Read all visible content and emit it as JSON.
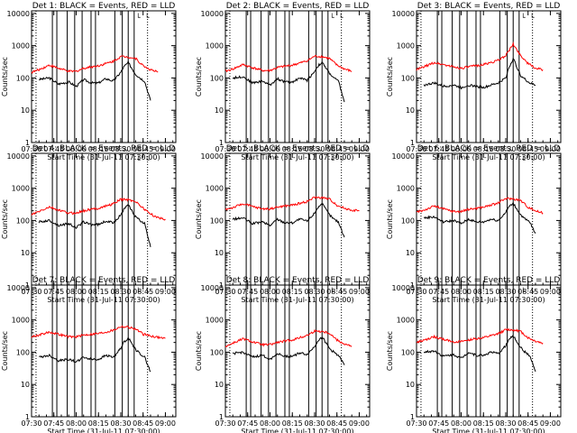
{
  "chart_data": {
    "type": "line",
    "x_axis": {
      "label": "Start Time (31-Jul-11 07:30:00)",
      "ticks": [
        "07:30",
        "07:45",
        "08:00",
        "08:15",
        "08:30",
        "08:45",
        "09:00"
      ],
      "range": [
        "07:30",
        "09:07"
      ]
    },
    "y_axis": {
      "label": "Counts/sec",
      "scale": "log",
      "range": [
        1,
        12000
      ],
      "ticks": [
        "1",
        "10",
        "100",
        "1000",
        "10000"
      ]
    },
    "grid": false,
    "colors": {
      "events": "#000000",
      "lld": "#ff0000"
    },
    "panels": [
      {
        "title": "Det 1: BLACK = Events, RED = LLD",
        "series": [
          {
            "color": "black",
            "times": [
              "07:35",
              "07:42",
              "07:48",
              "07:55",
              "08:00",
              "08:05",
              "08:10",
              "08:15",
              "08:20",
              "08:25",
              "08:30",
              "08:32",
              "08:35",
              "08:40",
              "08:43",
              "08:46",
              "08:50"
            ],
            "values": [
              90,
              100,
              65,
              75,
              55,
              90,
              70,
              70,
              95,
              80,
              150,
              220,
              300,
              130,
              100,
              80,
              20
            ]
          },
          {
            "color": "red",
            "times": [
              "07:30",
              "07:35",
              "07:42",
              "07:48",
              "07:55",
              "08:00",
              "08:05",
              "08:10",
              "08:15",
              "08:20",
              "08:25",
              "08:30",
              "08:35",
              "08:40",
              "08:45",
              "08:50",
              "08:55"
            ],
            "values": [
              150,
              180,
              250,
              200,
              160,
              160,
              200,
              220,
              240,
              280,
              330,
              460,
              450,
              400,
              240,
              180,
              150
            ]
          }
        ]
      },
      {
        "title": "Det 2: BLACK = Events, RED = LLD",
        "series": [
          {
            "color": "black",
            "times": [
              "07:35",
              "07:42",
              "07:48",
              "07:55",
              "08:00",
              "08:05",
              "08:10",
              "08:15",
              "08:20",
              "08:25",
              "08:30",
              "08:32",
              "08:35",
              "08:40",
              "08:43",
              "08:46",
              "08:50"
            ],
            "values": [
              100,
              110,
              70,
              80,
              60,
              95,
              75,
              75,
              100,
              85,
              160,
              230,
              300,
              140,
              100,
              80,
              18
            ]
          },
          {
            "color": "red",
            "times": [
              "07:30",
              "07:35",
              "07:42",
              "07:48",
              "07:55",
              "08:00",
              "08:05",
              "08:10",
              "08:15",
              "08:20",
              "08:25",
              "08:30",
              "08:35",
              "08:40",
              "08:45",
              "08:50",
              "08:55"
            ],
            "values": [
              160,
              190,
              260,
              210,
              170,
              170,
              210,
              230,
              250,
              290,
              340,
              470,
              460,
              400,
              250,
              190,
              160
            ]
          }
        ]
      },
      {
        "title": "Det 3: BLACK = Events, RED = LLD",
        "series": [
          {
            "color": "black",
            "times": [
              "07:35",
              "07:42",
              "07:48",
              "07:55",
              "08:00",
              "08:05",
              "08:10",
              "08:15",
              "08:20",
              "08:25",
              "08:30",
              "08:32",
              "08:35",
              "08:40",
              "08:43",
              "08:46",
              "08:50"
            ],
            "values": [
              60,
              70,
              55,
              60,
              50,
              60,
              55,
              50,
              60,
              70,
              100,
              200,
              400,
              120,
              90,
              70,
              60
            ]
          },
          {
            "color": "red",
            "times": [
              "07:30",
              "07:35",
              "07:42",
              "07:48",
              "07:55",
              "08:00",
              "08:05",
              "08:10",
              "08:15",
              "08:20",
              "08:25",
              "08:30",
              "08:35",
              "08:40",
              "08:45",
              "08:50",
              "08:55"
            ],
            "values": [
              180,
              220,
              300,
              260,
              220,
              200,
              220,
              240,
              260,
              300,
              350,
              500,
              1100,
              500,
              280,
              200,
              180
            ]
          }
        ]
      },
      {
        "title": "Det 4: BLACK = Events, RED = LLD",
        "series": [
          {
            "color": "black",
            "times": [
              "07:35",
              "07:42",
              "07:48",
              "07:55",
              "08:00",
              "08:05",
              "08:10",
              "08:15",
              "08:20",
              "08:25",
              "08:30",
              "08:32",
              "08:35",
              "08:40",
              "08:43",
              "08:46",
              "08:50"
            ],
            "values": [
              90,
              100,
              70,
              80,
              60,
              90,
              75,
              75,
              95,
              85,
              150,
              220,
              300,
              130,
              100,
              80,
              15
            ]
          },
          {
            "color": "red",
            "times": [
              "07:30",
              "07:35",
              "07:42",
              "07:48",
              "07:55",
              "08:00",
              "08:05",
              "08:10",
              "08:15",
              "08:20",
              "08:25",
              "08:30",
              "08:35",
              "08:40",
              "08:45",
              "08:50",
              "08:55",
              "09:00"
            ],
            "values": [
              150,
              190,
              260,
              210,
              170,
              170,
              200,
              220,
              240,
              280,
              330,
              450,
              440,
              390,
              240,
              160,
              120,
              110
            ]
          }
        ]
      },
      {
        "title": "Det 5: BLACK = Events, RED = LLD",
        "series": [
          {
            "color": "black",
            "times": [
              "07:35",
              "07:42",
              "07:48",
              "07:55",
              "08:00",
              "08:05",
              "08:10",
              "08:15",
              "08:20",
              "08:25",
              "08:30",
              "08:32",
              "08:35",
              "08:40",
              "08:43",
              "08:46",
              "08:50"
            ],
            "values": [
              110,
              120,
              80,
              90,
              70,
              110,
              85,
              85,
              110,
              95,
              170,
              250,
              330,
              150,
              110,
              90,
              30
            ]
          },
          {
            "color": "red",
            "times": [
              "07:30",
              "07:35",
              "07:42",
              "07:48",
              "07:55",
              "08:00",
              "08:05",
              "08:10",
              "08:15",
              "08:20",
              "08:25",
              "08:30",
              "08:35",
              "08:40",
              "08:45",
              "08:50",
              "08:55",
              "09:00"
            ],
            "values": [
              220,
              250,
              330,
              270,
              230,
              230,
              260,
              280,
              300,
              340,
              390,
              520,
              510,
              460,
              300,
              240,
              210,
              200
            ]
          }
        ]
      },
      {
        "title": "Det 6: BLACK = Events, RED = LLD",
        "series": [
          {
            "color": "black",
            "times": [
              "07:35",
              "07:42",
              "07:48",
              "07:55",
              "08:00",
              "08:05",
              "08:10",
              "08:15",
              "08:20",
              "08:25",
              "08:30",
              "08:32",
              "08:35",
              "08:40",
              "08:43",
              "08:46",
              "08:50"
            ],
            "values": [
              120,
              130,
              90,
              100,
              80,
              110,
              90,
              90,
              110,
              100,
              180,
              260,
              340,
              150,
              110,
              90,
              40
            ]
          },
          {
            "color": "red",
            "times": [
              "07:30",
              "07:35",
              "07:42",
              "07:48",
              "07:55",
              "08:00",
              "08:05",
              "08:10",
              "08:15",
              "08:20",
              "08:25",
              "08:30",
              "08:35",
              "08:40",
              "08:45",
              "08:50",
              "08:55"
            ],
            "values": [
              180,
              210,
              280,
              230,
              190,
              190,
              220,
              240,
              260,
              300,
              350,
              480,
              470,
              420,
              260,
              200,
              170
            ]
          }
        ]
      },
      {
        "title": "Det 7: BLACK = Events, RED = LLD",
        "series": [
          {
            "color": "black",
            "times": [
              "07:35",
              "07:42",
              "07:48",
              "07:55",
              "08:00",
              "08:05",
              "08:10",
              "08:15",
              "08:20",
              "08:25",
              "08:30",
              "08:32",
              "08:35",
              "08:40",
              "08:43",
              "08:46",
              "08:50"
            ],
            "values": [
              70,
              80,
              55,
              60,
              50,
              70,
              60,
              60,
              80,
              70,
              130,
              200,
              280,
              120,
              90,
              70,
              25
            ]
          },
          {
            "color": "red",
            "times": [
              "07:30",
              "07:35",
              "07:42",
              "07:48",
              "07:55",
              "08:00",
              "08:05",
              "08:10",
              "08:15",
              "08:20",
              "08:25",
              "08:30",
              "08:35",
              "08:40",
              "08:45",
              "08:50",
              "08:55",
              "09:00"
            ],
            "values": [
              300,
              340,
              420,
              360,
              300,
              300,
              340,
              360,
              380,
              420,
              480,
              620,
              600,
              520,
              360,
              320,
              290,
              270
            ]
          }
        ]
      },
      {
        "title": "Det 8: BLACK = Events, RED = LLD",
        "series": [
          {
            "color": "black",
            "times": [
              "07:35",
              "07:42",
              "07:48",
              "07:55",
              "08:00",
              "08:05",
              "08:10",
              "08:15",
              "08:20",
              "08:25",
              "08:30",
              "08:32",
              "08:35",
              "08:40",
              "08:43",
              "08:46",
              "08:50"
            ],
            "values": [
              90,
              100,
              70,
              80,
              60,
              90,
              75,
              75,
              95,
              85,
              150,
              220,
              300,
              130,
              100,
              80,
              40
            ]
          },
          {
            "color": "red",
            "times": [
              "07:30",
              "07:35",
              "07:42",
              "07:48",
              "07:55",
              "08:00",
              "08:05",
              "08:10",
              "08:15",
              "08:20",
              "08:25",
              "08:30",
              "08:35",
              "08:40",
              "08:45",
              "08:50",
              "08:55"
            ],
            "values": [
              150,
              190,
              260,
              210,
              170,
              170,
              200,
              220,
              240,
              280,
              330,
              450,
              440,
              390,
              240,
              180,
              150
            ]
          }
        ]
      },
      {
        "title": "Det 9: BLACK = Events, RED = LLD",
        "series": [
          {
            "color": "black",
            "times": [
              "07:35",
              "07:42",
              "07:48",
              "07:55",
              "08:00",
              "08:05",
              "08:10",
              "08:15",
              "08:20",
              "08:25",
              "08:30",
              "08:32",
              "08:35",
              "08:40",
              "08:43",
              "08:46",
              "08:50"
            ],
            "values": [
              100,
              110,
              75,
              85,
              65,
              100,
              80,
              80,
              100,
              90,
              160,
              240,
              320,
              140,
              100,
              80,
              25
            ]
          },
          {
            "color": "red",
            "times": [
              "07:30",
              "07:35",
              "07:42",
              "07:48",
              "07:55",
              "08:00",
              "08:05",
              "08:10",
              "08:15",
              "08:20",
              "08:25",
              "08:30",
              "08:35",
              "08:40",
              "08:45",
              "08:50",
              "08:55"
            ],
            "values": [
              200,
              230,
              300,
              250,
              210,
              210,
              240,
              260,
              280,
              320,
              370,
              500,
              490,
              440,
              280,
              220,
              190
            ]
          }
        ]
      }
    ],
    "annotations": {
      "solid_vertical_lines_at": [
        "07:44",
        "07:47",
        "07:54",
        "07:59",
        "08:04",
        "08:10",
        "08:13",
        "08:26",
        "08:31",
        "08:35",
        "08:39"
      ],
      "dotted_vertical_lines_at": [
        "07:33",
        "08:48"
      ],
      "markers": [
        "└",
        "└"
      ]
    }
  }
}
